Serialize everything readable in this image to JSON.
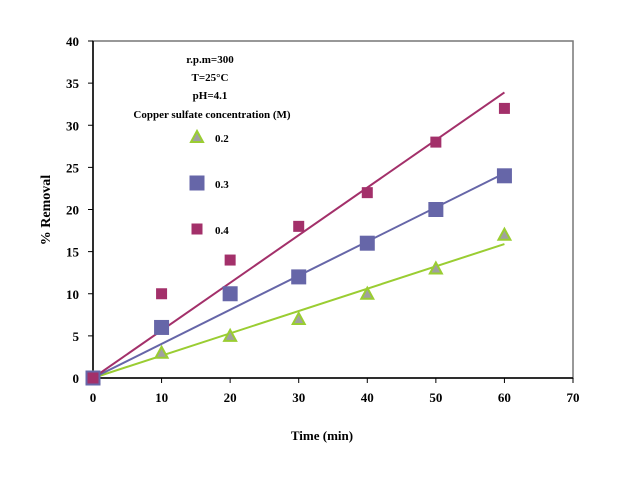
{
  "chart_data": {
    "type": "scatter",
    "title": "",
    "xlabel": "Time (min)",
    "ylabel": "% Removal",
    "xlim": [
      0,
      70
    ],
    "ylim": [
      0,
      40
    ],
    "xticks": [
      0,
      10,
      20,
      30,
      40,
      50,
      60,
      70
    ],
    "yticks": [
      0,
      5,
      10,
      15,
      20,
      25,
      30,
      35,
      40
    ],
    "grid": false,
    "annotations": [
      "r.p.m=300",
      "T=25°C",
      "pH=4.1"
    ],
    "legend_title": "Copper sulfate concentration (M)",
    "legend_position": "top-left",
    "series": [
      {
        "name": "0.2",
        "marker": "triangle",
        "color": "#9acd32",
        "fill": "#a0a0a0",
        "x": [
          0,
          10,
          20,
          30,
          40,
          50,
          60
        ],
        "y": [
          0,
          3,
          5,
          7,
          10,
          13,
          17
        ],
        "trendline": {
          "x": [
            0,
            60
          ],
          "y": [
            0,
            15.9
          ]
        }
      },
      {
        "name": "0.3",
        "marker": "square",
        "color": "#6666a8",
        "fill": "#6666a8",
        "x": [
          0,
          10,
          20,
          30,
          40,
          50,
          60
        ],
        "y": [
          0,
          6,
          10,
          12,
          16,
          20,
          24
        ],
        "trendline": {
          "x": [
            0,
            60
          ],
          "y": [
            0,
            24.3
          ]
        }
      },
      {
        "name": "0.4",
        "marker": "small-square",
        "color": "#a3306a",
        "fill": "#a3306a",
        "x": [
          0,
          10,
          20,
          30,
          40,
          50,
          60
        ],
        "y": [
          0,
          10,
          14,
          18,
          22,
          28,
          32
        ],
        "trendline": {
          "x": [
            0,
            60
          ],
          "y": [
            0,
            33.9
          ]
        }
      }
    ]
  }
}
